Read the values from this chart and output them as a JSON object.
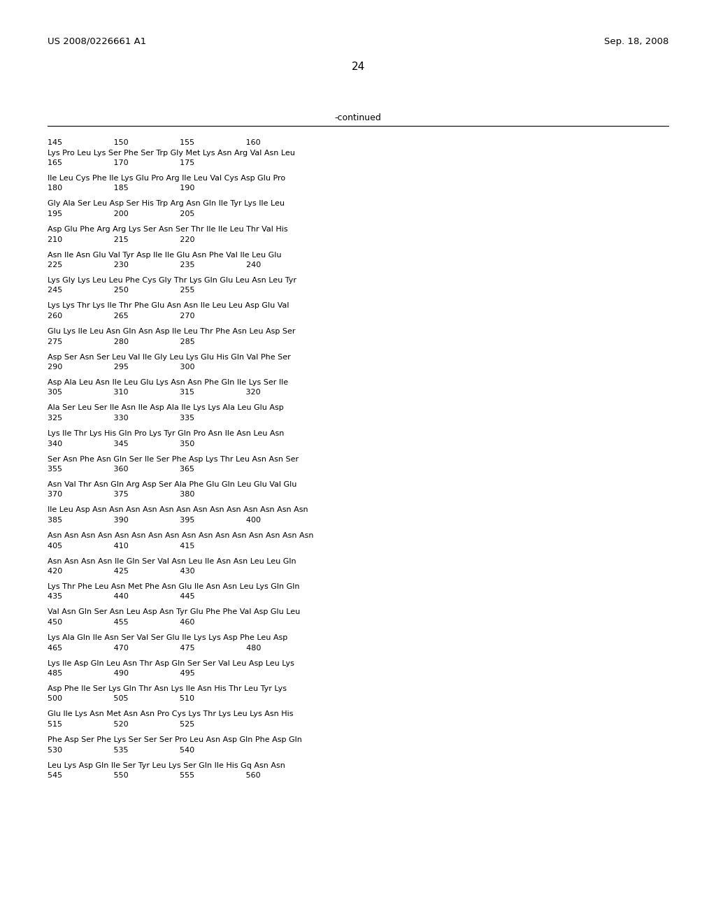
{
  "header_left": "US 2008/0226661 A1",
  "header_right": "Sep. 18, 2008",
  "page_number": "24",
  "continued_label": "-continued",
  "bg": "#ffffff",
  "tc": "#000000",
  "blocks": [
    [
      "145                     150                     155                     160",
      "Lys Pro Leu Lys Ser Phe Ser Trp Gly Met Lys Asn Arg Val Asn Leu",
      "165                     170                     175"
    ],
    [
      "",
      "Ile Leu Cys Phe Ile Lys Glu Pro Arg Ile Leu Val Cys Asp Glu Pro",
      "180                     185                     190"
    ],
    [
      "",
      "Gly Ala Ser Leu Asp Ser His Trp Arg Asn Gln Ile Tyr Lys Ile Leu",
      "195                     200                     205"
    ],
    [
      "",
      "Asp Glu Phe Arg Arg Lys Ser Asn Ser Thr Ile Ile Leu Thr Val His",
      "210                     215                     220"
    ],
    [
      "",
      "Asn Ile Asn Glu Val Tyr Asp Ile Ile Glu Asn Phe Val Ile Leu Glu",
      "225                     230                     235                     240"
    ],
    [
      "",
      "Lys Gly Lys Leu Leu Phe Cys Gly Thr Lys Gln Glu Leu Asn Leu Tyr",
      "245                     250                     255"
    ],
    [
      "",
      "Lys Lys Thr Lys Ile Thr Phe Glu Asn Asn Ile Leu Leu Asp Glu Val",
      "260                     265                     270"
    ],
    [
      "",
      "Glu Lys Ile Leu Asn Gln Asn Asp Ile Leu Thr Phe Asn Leu Asp Ser",
      "275                     280                     285"
    ],
    [
      "",
      "Asp Ser Asn Ser Leu Val Ile Gly Leu Lys Glu His Gln Val Phe Ser",
      "290                     295                     300"
    ],
    [
      "",
      "Asp Ala Leu Asn Ile Leu Glu Lys Asn Asn Phe Gln Ile Lys Ser Ile",
      "305                     310                     315                     320"
    ],
    [
      "",
      "Ala Ser Leu Ser Ile Asn Ile Asp Ala Ile Lys Lys Ala Leu Glu Asp",
      "325                     330                     335"
    ],
    [
      "",
      "Lys Ile Thr Lys His Gln Pro Lys Tyr Gln Pro Asn Ile Asn Leu Asn",
      "340                     345                     350"
    ],
    [
      "",
      "Ser Asn Phe Asn Gln Ser Ile Ser Phe Asp Lys Thr Leu Asn Asn Ser",
      "355                     360                     365"
    ],
    [
      "",
      "Asn Val Thr Asn Gln Arg Asp Ser Ala Phe Glu Gln Leu Glu Val Glu",
      "370                     375                     380"
    ],
    [
      "",
      "Ile Leu Asp Asn Asn Asn Asn Asn Asn Asn Asn Asn Asn Asn Asn Asn",
      "385                     390                     395                     400"
    ],
    [
      "",
      "Asn Asn Asn Asn Asn Asn Asn Asn Asn Asn Asn Asn Asn Asn Asn Asn",
      "405                     410                     415"
    ],
    [
      "",
      "Asn Asn Asn Asn Ile Gln Ser Val Asn Leu Ile Asn Asn Leu Leu Gln",
      "420                     425                     430"
    ],
    [
      "",
      "Lys Thr Phe Leu Asn Met Phe Asn Glu Ile Asn Asn Leu Lys Gln Gln",
      "435                     440                     445"
    ],
    [
      "",
      "Val Asn Gln Ser Asn Leu Asp Asn Tyr Glu Phe Phe Val Asp Glu Leu",
      "450                     455                     460"
    ],
    [
      "",
      "Lys Ala Gln Ile Asn Ser Val Ser Glu Ile Lys Lys Asp Phe Leu Asp",
      "465                     470                     475                     480"
    ],
    [
      "",
      "Lys Ile Asp Gln Leu Asn Thr Asp Gln Ser Ser Val Leu Asp Leu Lys",
      "485                     490                     495"
    ],
    [
      "",
      "Asp Phe Ile Ser Lys Gln Thr Asn Lys Ile Asn His Thr Leu Tyr Lys",
      "500                     505                     510"
    ],
    [
      "",
      "Glu Ile Lys Asn Met Asn Asn Pro Cys Lys Thr Lys Leu Lys Asn His",
      "515                     520                     525"
    ],
    [
      "",
      "Phe Asp Ser Phe Lys Ser Ser Ser Pro Leu Asn Asp Gln Phe Asp Gln",
      "530                     535                     540"
    ],
    [
      "",
      "Leu Lys Asp Gln Ile Ser Tyr Leu Lys Ser Gln Ile His Gq Asn Asn",
      "545                     550                     555                     560"
    ]
  ]
}
